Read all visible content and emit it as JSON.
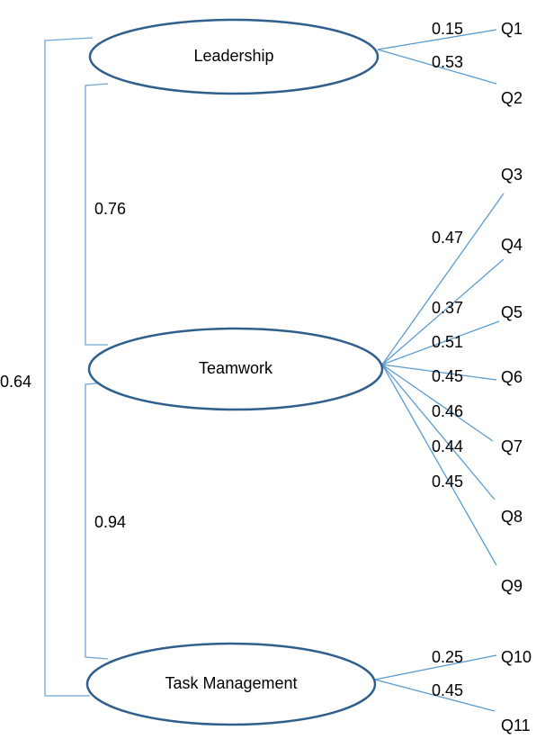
{
  "factors": [
    {
      "label": "Leadership",
      "items": [
        {
          "label": "Q1",
          "loading": 0.15
        },
        {
          "label": "Q2",
          "loading": 0.53
        }
      ]
    },
    {
      "label": "Teamwork",
      "items": [
        {
          "label": "Q3",
          "loading": 0.47
        },
        {
          "label": "Q4",
          "loading": 0.37
        },
        {
          "label": "Q5",
          "loading": 0.51
        },
        {
          "label": "Q6",
          "loading": 0.45
        },
        {
          "label": "Q7",
          "loading": 0.46
        },
        {
          "label": "Q8",
          "loading": 0.44
        },
        {
          "label": "Q9",
          "loading": 0.45
        }
      ]
    },
    {
      "label": "Task Management",
      "items": [
        {
          "label": "Q10",
          "loading": 0.25
        },
        {
          "label": "Q11",
          "loading": 0.45
        }
      ]
    }
  ],
  "correlations": [
    {
      "between": [
        "Leadership",
        "Teamwork"
      ],
      "value": 0.76
    },
    {
      "between": [
        "Teamwork",
        "Task Management"
      ],
      "value": 0.94
    },
    {
      "between": [
        "Leadership",
        "Task Management"
      ],
      "value": 0.64
    }
  ]
}
